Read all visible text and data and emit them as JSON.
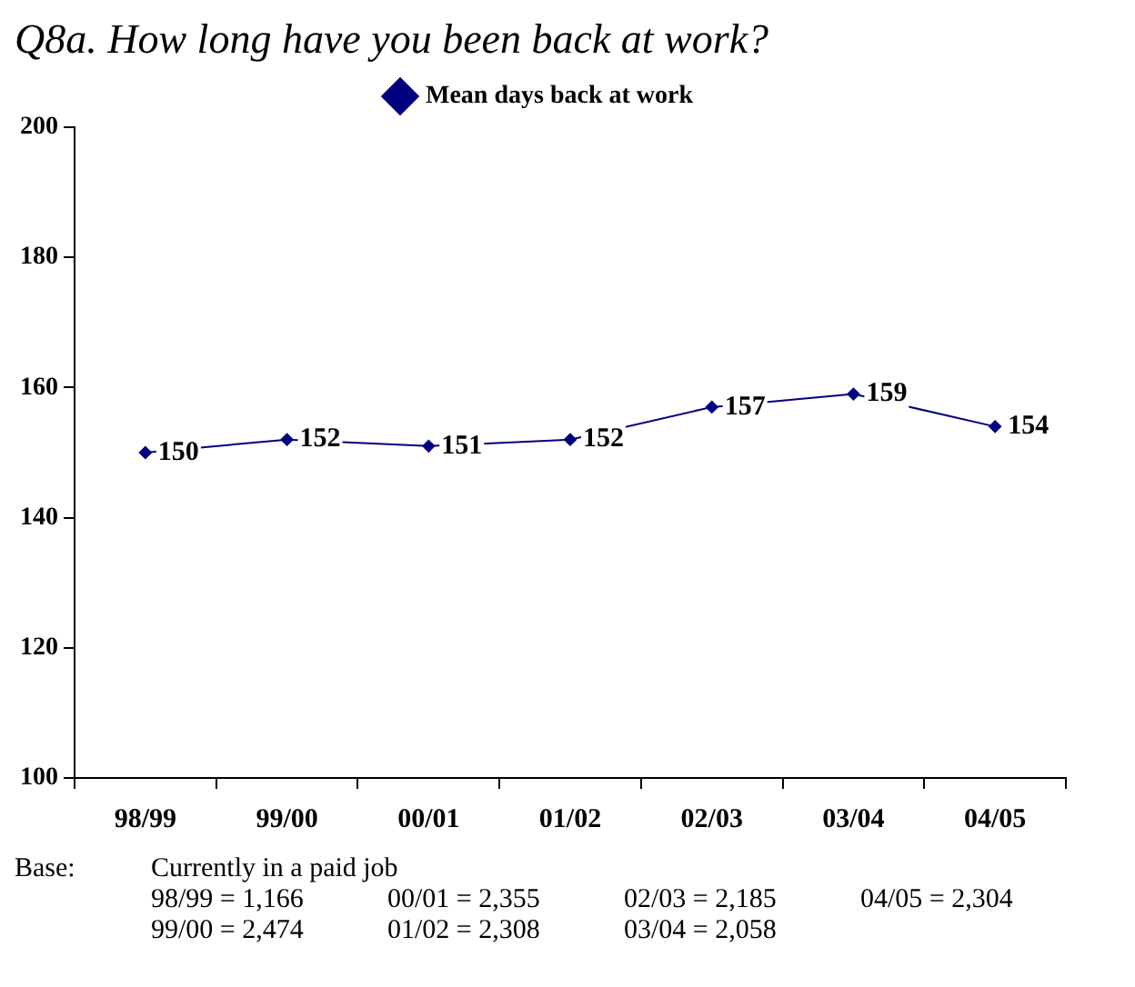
{
  "chart_data": {
    "type": "line",
    "title": "Q8a.   How long have you been back at work?",
    "categories": [
      "98/99",
      "99/00",
      "00/01",
      "01/02",
      "02/03",
      "03/04",
      "04/05"
    ],
    "series": [
      {
        "name": "Mean days back at work",
        "color": "#000080",
        "values": [
          150,
          152,
          151,
          152,
          157,
          159,
          154
        ]
      }
    ],
    "ylim": [
      100,
      200
    ],
    "yticks": [
      100,
      120,
      140,
      160,
      180,
      200
    ],
    "grid": false,
    "legend": "top",
    "marker": "diamond",
    "line_style": "solid",
    "data_labels": true,
    "annotations": [
      "Base:",
      "Currently in a paid job",
      "98/99 = 1,166",
      "00/01 = 2,355",
      "02/03 = 2,185",
      "04/05 = 2,304",
      "99/00 = 2,474",
      "01/02 = 2,308",
      "03/04 = 2,058"
    ]
  }
}
